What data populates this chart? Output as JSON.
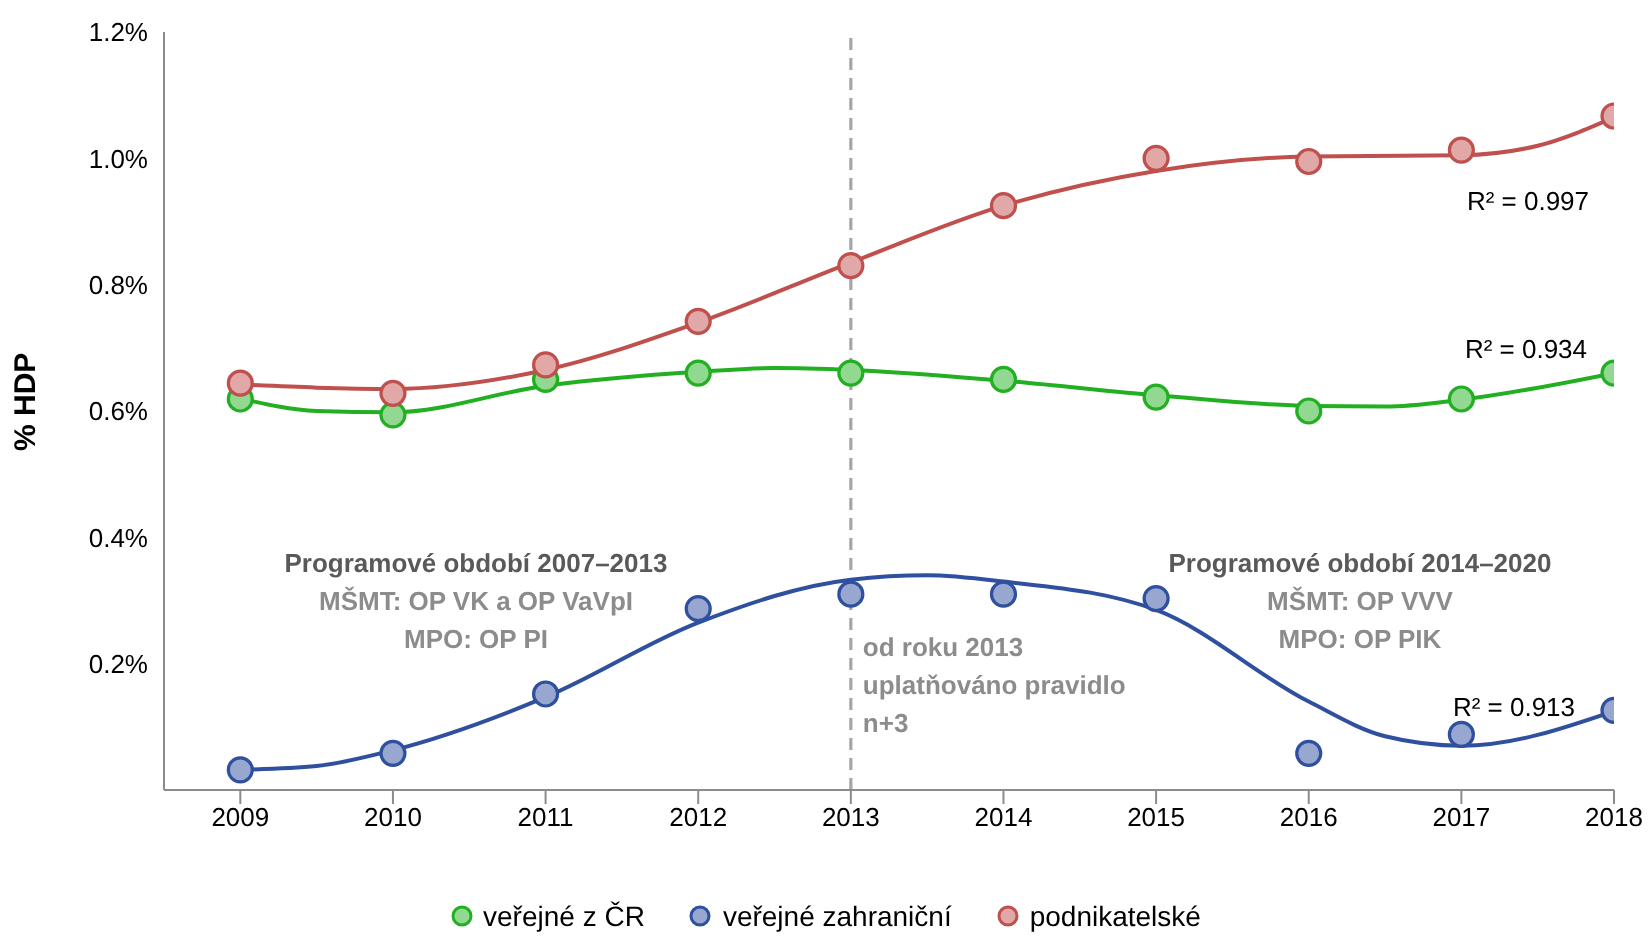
{
  "chart_data": {
    "type": "scatter",
    "ylabel": "% HDP",
    "xlim": [
      2008.5,
      2018
    ],
    "xticks": [
      2009,
      2010,
      2011,
      2012,
      2013,
      2014,
      2015,
      2016,
      2017,
      2018
    ],
    "ylim": [
      0,
      1.2
    ],
    "yticks": [
      {
        "value": 0,
        "label": null
      },
      {
        "value": 0.2,
        "label": "0.2%"
      },
      {
        "value": 0.4,
        "label": "0.4%"
      },
      {
        "value": 0.6,
        "label": "0.6%"
      },
      {
        "value": 0.8,
        "label": "0.8%"
      },
      {
        "value": 1.0,
        "label": "1.0%"
      },
      {
        "value": 1.2,
        "label": "1.2%"
      }
    ],
    "x": [
      2009,
      2010,
      2011,
      2012,
      2013,
      2014,
      2015,
      2016,
      2017,
      2018
    ],
    "marker": "circle",
    "grid": false,
    "legend": "bottom",
    "series": [
      {
        "name": "veřejné z ČR",
        "color": "#22b022",
        "values": [
          0.619,
          0.594,
          0.65,
          0.66,
          0.66,
          0.65,
          0.622,
          0.6,
          0.619,
          0.66
        ]
      },
      {
        "name": "veřejné zahraniční",
        "color": "#2f4f9f",
        "values": [
          0.032,
          0.058,
          0.152,
          0.287,
          0.31,
          0.31,
          0.303,
          0.058,
          0.088,
          0.126
        ]
      },
      {
        "name": "podnikatelské",
        "color": "#c0504d",
        "values": [
          0.644,
          0.628,
          0.673,
          0.742,
          0.83,
          0.925,
          1.0,
          0.995,
          1.013,
          1.067
        ]
      },
      {
        "type": "line",
        "color": "#22b022",
        "marker": "none",
        "x": [
          2009,
          2009.5,
          2010,
          2011,
          2012,
          2012.5,
          2013,
          2014,
          2015,
          2016,
          2016.5,
          2017,
          2018
        ],
        "values": [
          0.62,
          0.6,
          0.598,
          0.64,
          0.662,
          0.668,
          0.665,
          0.648,
          0.625,
          0.608,
          0.607,
          0.618,
          0.66
        ]
      },
      {
        "type": "line",
        "color": "#2f4f9f",
        "marker": "none",
        "x": [
          2009,
          2009.5,
          2010,
          2011,
          2012,
          2013,
          2013.5,
          2014,
          2015,
          2016,
          2016.5,
          2017,
          2018
        ],
        "values": [
          0.032,
          0.038,
          0.063,
          0.147,
          0.265,
          0.333,
          0.34,
          0.33,
          0.285,
          0.14,
          0.085,
          0.07,
          0.125
        ]
      },
      {
        "type": "line",
        "color": "#c0504d",
        "marker": "none",
        "x": [
          2009,
          2009.5,
          2010,
          2011,
          2012,
          2013,
          2014,
          2015,
          2016,
          2017,
          2017.5,
          2018
        ],
        "values": [
          0.642,
          0.637,
          0.635,
          0.665,
          0.74,
          0.835,
          0.925,
          0.98,
          1.003,
          1.005,
          1.02,
          1.065
        ]
      }
    ],
    "ref_lines": [
      {
        "axis": "x",
        "value": 2013,
        "color": "#a6a6a6",
        "line_style": "dashed",
        "label": "od roku 2013\nuplatňováno pravidlo\nn+3"
      }
    ],
    "annotations": [
      "R² = 0.997",
      "R² = 0.934",
      "R² = 0.913",
      "Programové období 2007–2013",
      "MŠMT: OP VK a OP VaVpI",
      "MPO: OP PI",
      "Programové období 2014–2020",
      "MŠMT: OP VVV",
      "MPO: OP PIK"
    ]
  }
}
